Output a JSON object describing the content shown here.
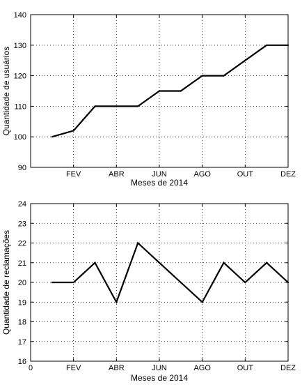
{
  "chart_data": [
    {
      "type": "line",
      "title": "",
      "xlabel": "Meses de 2014",
      "ylabel": "Quantidade de usuários",
      "x": [
        1,
        2,
        3,
        4,
        5,
        6,
        7,
        8,
        9,
        10,
        11,
        12
      ],
      "xticks": [
        2,
        4,
        6,
        8,
        10,
        12
      ],
      "xtick_labels": [
        "FEV",
        "ABR",
        "JUN",
        "AGO",
        "OUT",
        "DEZ"
      ],
      "xlim": [
        0,
        12
      ],
      "ylim": [
        90,
        140
      ],
      "yticks": [
        90,
        100,
        110,
        120,
        130,
        140
      ],
      "series": [
        {
          "values": [
            100,
            102,
            110,
            110,
            110,
            115,
            115,
            120,
            120,
            125,
            130,
            130
          ]
        }
      ],
      "grid": true,
      "line_color": "#000000"
    },
    {
      "type": "line",
      "title": "",
      "xlabel": "Meses de 2014",
      "ylabel": "Quantidade de reclamações",
      "x": [
        1,
        2,
        3,
        4,
        5,
        6,
        7,
        8,
        9,
        10,
        11,
        12
      ],
      "xticks": [
        0,
        2,
        4,
        6,
        8,
        10,
        12
      ],
      "xtick_labels": [
        "0",
        "FEV",
        "ABR",
        "JUN",
        "AGO",
        "OUT",
        "DEZ"
      ],
      "xlim": [
        0,
        12
      ],
      "ylim": [
        16,
        24
      ],
      "yticks": [
        16,
        17,
        18,
        19,
        20,
        21,
        22,
        23,
        24
      ],
      "series": [
        {
          "values": [
            20,
            20,
            21,
            19,
            22,
            21,
            20,
            19,
            21,
            20,
            21,
            20
          ]
        }
      ],
      "grid": true,
      "line_color": "#000000"
    }
  ]
}
